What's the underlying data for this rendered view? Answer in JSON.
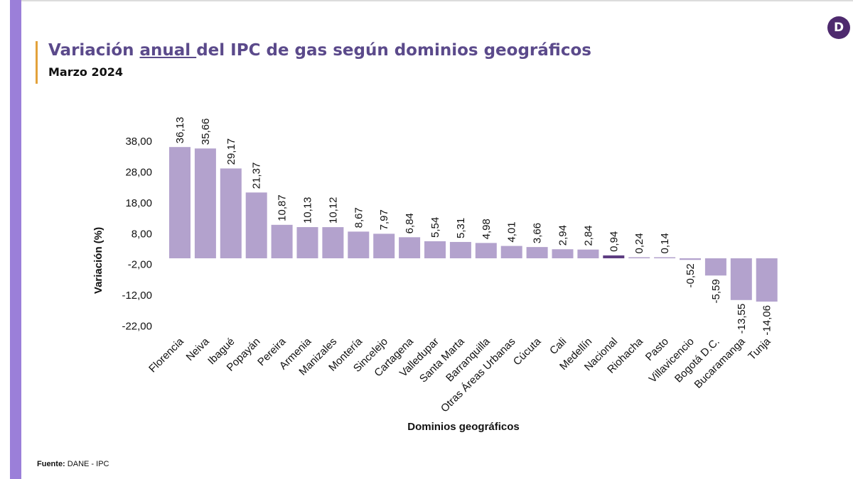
{
  "logo": {
    "letter": "D"
  },
  "header": {
    "title_before": "Variación ",
    "title_underlined": "anual ",
    "title_after": "del IPC de gas según dominios geográficos",
    "subtitle": "Marzo 2024"
  },
  "source": {
    "label": "Fuente:",
    "text": "DANE - IPC"
  },
  "colors": {
    "bar": "#b3a2cd",
    "highlight": "#5e3d82",
    "accent": "#e3a23b",
    "title": "#5b4a8b"
  },
  "chart_data": {
    "type": "bar",
    "xlabel": "Dominios geográficos",
    "ylabel": "Variación (%)",
    "yticks": [
      38,
      28,
      18,
      8,
      -2,
      -12,
      -22
    ],
    "ytick_labels": [
      "38,00",
      "28,00",
      "18,00",
      "8,00",
      "-2,00",
      "-12,00",
      "-22,00"
    ],
    "highlight": "Nacional",
    "categories": [
      "Florencia",
      "Neiva",
      "Ibagué",
      "Popayán",
      "Pereira",
      "Armenia",
      "Manizales",
      "Montería",
      "Sincelejo",
      "Cartagena",
      "Valledupar",
      "Santa Marta",
      "Barranquilla",
      "Otras Áreas Urbanas",
      "Cúcuta",
      "Cali",
      "Medellín",
      "Nacional",
      "Riohacha",
      "Pasto",
      "Villavicencio",
      "Bogotá D.C.",
      "Bucaramanga",
      "Tunja"
    ],
    "values": [
      36.13,
      35.66,
      29.17,
      21.37,
      10.87,
      10.13,
      10.12,
      8.67,
      7.97,
      6.84,
      5.54,
      5.31,
      4.98,
      4.01,
      3.66,
      2.94,
      2.84,
      0.94,
      0.24,
      0.14,
      -0.52,
      -5.59,
      -13.55,
      -14.06
    ],
    "value_labels": [
      "36,13",
      "35,66",
      "29,17",
      "21,37",
      "10,87",
      "10,13",
      "10,12",
      "8,67",
      "7,97",
      "6,84",
      "5,54",
      "5,31",
      "4,98",
      "4,01",
      "3,66",
      "2,94",
      "2,84",
      "0,94",
      "0,24",
      "0,14",
      "-0,52",
      "-5,59",
      "-13,55",
      "-14,06"
    ]
  }
}
